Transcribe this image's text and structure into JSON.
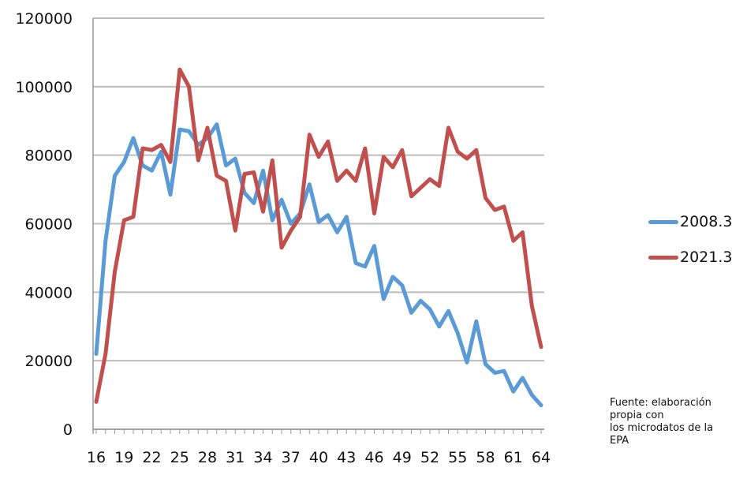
{
  "chart_data": {
    "type": "line",
    "title": "",
    "xlabel": "",
    "ylabel": "",
    "x": [
      16,
      17,
      18,
      19,
      20,
      21,
      22,
      23,
      24,
      25,
      26,
      27,
      28,
      29,
      30,
      31,
      32,
      33,
      34,
      35,
      36,
      37,
      38,
      39,
      40,
      41,
      42,
      43,
      44,
      45,
      46,
      47,
      48,
      49,
      50,
      51,
      52,
      53,
      54,
      55,
      56,
      57,
      58,
      59,
      60,
      61,
      62,
      63,
      64
    ],
    "x_tick_labels": [
      "16",
      "19",
      "22",
      "25",
      "28",
      "31",
      "34",
      "37",
      "40",
      "43",
      "46",
      "49",
      "52",
      "55",
      "58",
      "61",
      "64"
    ],
    "y_tick_labels": [
      "0",
      "20000",
      "40000",
      "60000",
      "80000",
      "100000",
      "120000"
    ],
    "ylim": [
      0,
      120000
    ],
    "grid": true,
    "legend_position": "right",
    "series": [
      {
        "name": "2008.3",
        "color": "#5b9bd5",
        "values": [
          22000,
          55000,
          74000,
          78000,
          85000,
          77000,
          75500,
          81000,
          68500,
          87500,
          87000,
          83000,
          85000,
          89000,
          77000,
          79000,
          69000,
          66000,
          75500,
          61000,
          67000,
          60000,
          63000,
          71500,
          60500,
          62500,
          57500,
          62000,
          48500,
          47500,
          53500,
          38000,
          44500,
          42000,
          34000,
          37500,
          35000,
          30000,
          34500,
          28000,
          19500,
          31500,
          19000,
          16500,
          17000,
          11000,
          15000,
          10000,
          7000
        ]
      },
      {
        "name": "2021.3",
        "color": "#c0504d",
        "values": [
          8000,
          22000,
          46000,
          61000,
          62000,
          82000,
          81500,
          83000,
          78000,
          105000,
          100000,
          78500,
          88000,
          74000,
          72500,
          58000,
          74500,
          75000,
          63500,
          78500,
          53000,
          58000,
          62000,
          86000,
          79500,
          84000,
          72500,
          75500,
          72500,
          82000,
          63000,
          79500,
          76500,
          81500,
          68000,
          70500,
          73000,
          71000,
          88000,
          81000,
          79000,
          81500,
          67500,
          64000,
          65000,
          55000,
          57500,
          36000,
          24000
        ]
      }
    ]
  },
  "source_lines": [
    "Fuente: elaboración",
    "propia con",
    "los microdatos de la",
    "EPA"
  ]
}
